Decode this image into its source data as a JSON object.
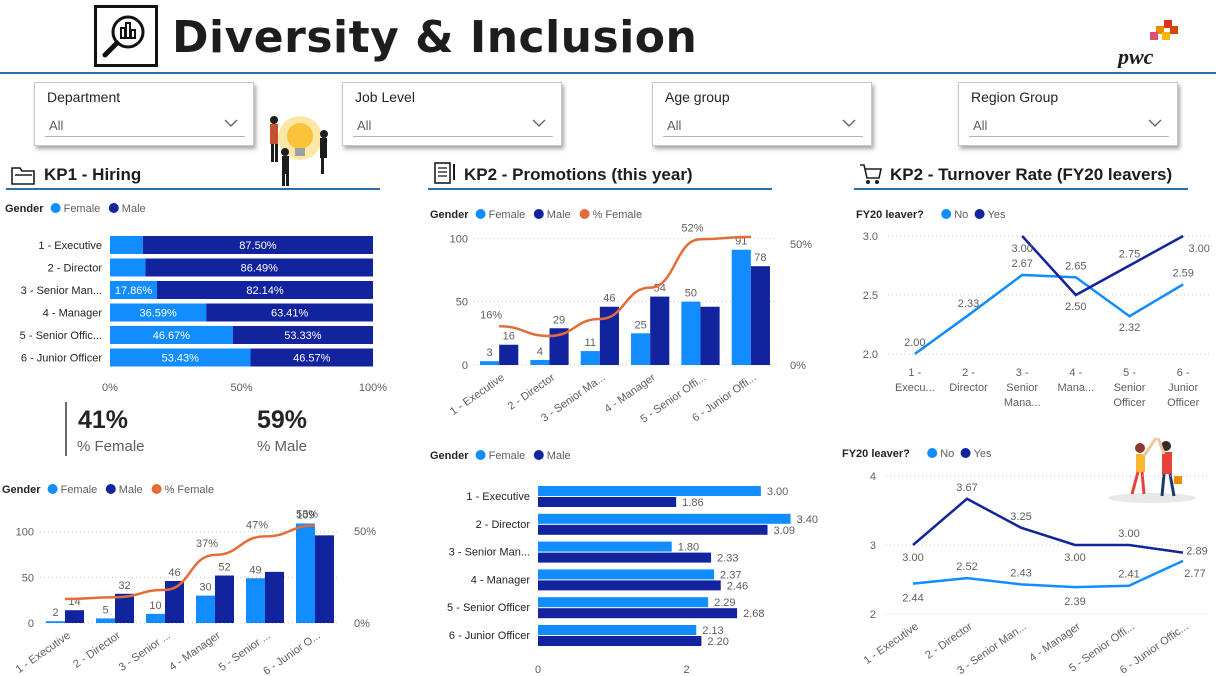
{
  "header": {
    "title": "Diversity & Inclusion",
    "logo_text": "pwc"
  },
  "filters": [
    {
      "label": "Department",
      "value": "All"
    },
    {
      "label": "Job Level",
      "value": "All"
    },
    {
      "label": "Age group",
      "value": "All"
    },
    {
      "label": "Region Group",
      "value": "All"
    }
  ],
  "sections": {
    "hiring": "KP1 - Hiring",
    "promotions": "KP2 - Promotions (this year)",
    "turnover": "KP2 - Turnover Rate (FY20 leavers)"
  },
  "kpis": {
    "female_value": "41%",
    "female_label": "% Female",
    "male_value": "59%",
    "male_label": "% Male"
  },
  "colors": {
    "female": "#118dff",
    "male": "#12239e",
    "pct_female": "#e66c37",
    "accent": "#2e6ca8"
  },
  "chart_data": [
    {
      "id": "hiring-gender-stacked",
      "type": "bar",
      "orientation": "horizontal-stacked-100",
      "legend_title": "Gender",
      "categories": [
        "1 - Executive",
        "2 - Director",
        "3 - Senior Man...",
        "4 - Manager",
        "5 - Senior Offic...",
        "6 - Junior Officer"
      ],
      "series": [
        {
          "name": "Female",
          "values": [
            12.5,
            13.51,
            17.86,
            36.59,
            46.67,
            53.43
          ],
          "labels": [
            "",
            "",
            "17.86%",
            "36.59%",
            "46.67%",
            "53.43%"
          ]
        },
        {
          "name": "Male",
          "values": [
            87.5,
            86.49,
            82.14,
            63.41,
            53.33,
            46.57
          ],
          "labels": [
            "87.50%",
            "86.49%",
            "82.14%",
            "63.41%",
            "53.33%",
            "46.57%"
          ]
        }
      ],
      "xticks": [
        "0%",
        "50%",
        "100%"
      ],
      "xlim": [
        0,
        100
      ]
    },
    {
      "id": "hiring-counts",
      "type": "bar",
      "legend_title": "Gender",
      "categories": [
        "1 - Executive",
        "2 - Director",
        "3 - Senior ...",
        "4 - Manager",
        "5 - Senior ...",
        "6 - Junior O..."
      ],
      "series": [
        {
          "name": "Female",
          "values": [
            2,
            5,
            10,
            30,
            49,
            109
          ]
        },
        {
          "name": "Male",
          "values": [
            14,
            32,
            46,
            52,
            56,
            96
          ]
        },
        {
          "name": "% Female",
          "values": [
            13,
            14,
            18,
            37,
            47,
            53
          ],
          "labels": [
            "",
            "",
            "",
            "37%",
            "47%",
            "53%"
          ]
        }
      ],
      "bar_labels": {
        "female": [
          "2",
          "5",
          "10",
          "30",
          "49",
          "109"
        ],
        "male": [
          "14",
          "32",
          "46",
          "52",
          "",
          ""
        ]
      },
      "yticks": [
        "0",
        "50",
        "100"
      ],
      "ylim": [
        0,
        115
      ],
      "y2ticks": [
        "0%",
        "50%"
      ],
      "y2lim": [
        0,
        57
      ]
    },
    {
      "id": "promotions-counts",
      "type": "bar",
      "legend_title": "Gender",
      "categories": [
        "1 - Executive",
        "2 - Director",
        "3 - Senior Ma...",
        "4 - Manager",
        "5 - Senior Offi...",
        "6 - Junior Offi..."
      ],
      "series": [
        {
          "name": "Female",
          "values": [
            3,
            4,
            11,
            25,
            50,
            91
          ]
        },
        {
          "name": "Male",
          "values": [
            16,
            29,
            46,
            54,
            46,
            78
          ]
        },
        {
          "name": "% Female",
          "values": [
            16,
            12,
            19,
            32,
            52,
            53
          ],
          "labels": [
            "16%",
            "",
            "",
            "",
            "52%",
            ""
          ]
        }
      ],
      "bar_labels": {
        "female": [
          "3",
          "4",
          "11",
          "25",
          "50",
          "91"
        ],
        "male": [
          "16",
          "29",
          "46",
          "54",
          "",
          "78"
        ]
      },
      "yticks": [
        "0",
        "50",
        "100"
      ],
      "ylim": [
        0,
        105
      ],
      "y2ticks": [
        "0%",
        "50%"
      ],
      "y2lim": [
        0,
        55
      ]
    },
    {
      "id": "promotions-gender-hbar",
      "type": "bar",
      "orientation": "horizontal",
      "legend_title": "Gender",
      "categories": [
        "1 - Executive",
        "2 - Director",
        "3 - Senior Man...",
        "4 - Manager",
        "5 - Senior Officer",
        "6 - Junior Officer"
      ],
      "series": [
        {
          "name": "Female",
          "values": [
            3.0,
            3.4,
            1.8,
            2.37,
            2.29,
            2.13
          ]
        },
        {
          "name": "Male",
          "values": [
            1.86,
            3.09,
            2.33,
            2.46,
            2.68,
            2.2
          ]
        }
      ],
      "xticks": [
        "0",
        "2"
      ],
      "xlim": [
        0,
        3.5
      ]
    },
    {
      "id": "turnover-fy20-1",
      "type": "line",
      "legend_title": "FY20 leaver?",
      "categories": [
        "1 - Execu...",
        "2 - Director",
        "3 - Senior Mana...",
        "4 - Mana...",
        "5 - Senior Officer",
        "6 - Junior Officer"
      ],
      "series": [
        {
          "name": "No",
          "values": [
            2.0,
            2.33,
            2.67,
            2.65,
            2.32,
            2.59
          ]
        },
        {
          "name": "Yes",
          "values": [
            null,
            null,
            3.0,
            2.5,
            2.75,
            3.0
          ]
        }
      ],
      "yticks": [
        "2.0",
        "2.5",
        "3.0"
      ],
      "ylim": [
        2.0,
        3.0
      ]
    },
    {
      "id": "turnover-fy20-2",
      "type": "line",
      "legend_title": "FY20 leaver?",
      "categories": [
        "1 - Executive",
        "2 - Director",
        "3 - Senior Man...",
        "4 - Manager",
        "5 - Senior Offi...",
        "6 - Junior Offic..."
      ],
      "series": [
        {
          "name": "No",
          "values": [
            2.44,
            2.52,
            2.43,
            2.39,
            2.41,
            2.77
          ]
        },
        {
          "name": "Yes",
          "values": [
            3.0,
            3.67,
            3.25,
            3.0,
            3.0,
            2.89
          ]
        }
      ],
      "yticks": [
        "2",
        "3",
        "4"
      ],
      "ylim": [
        2,
        4
      ]
    }
  ]
}
